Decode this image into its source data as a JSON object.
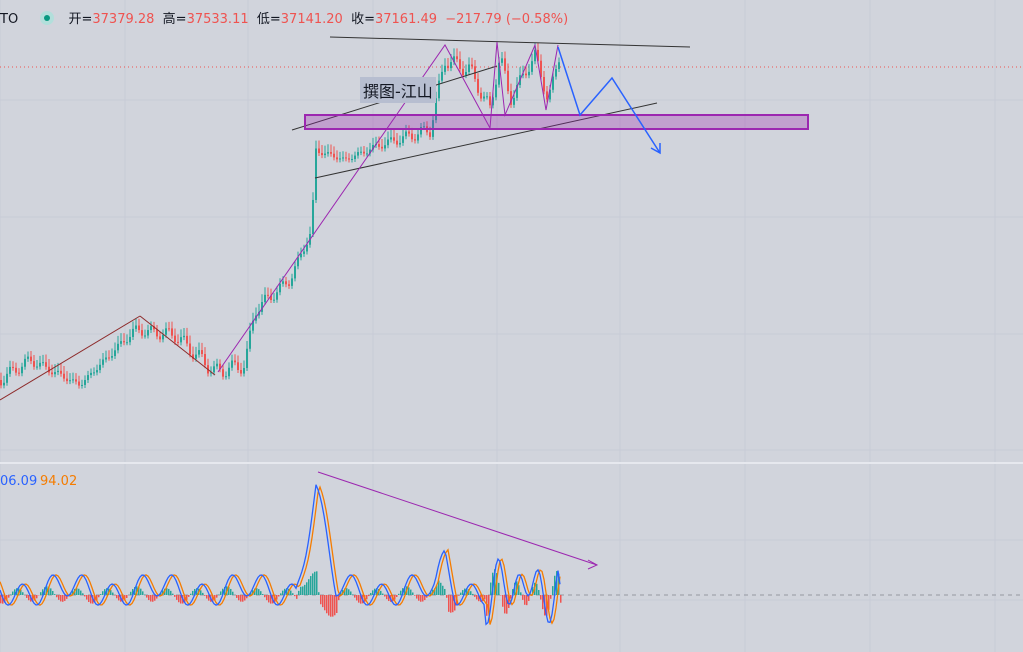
{
  "header": {
    "symbol": "TO",
    "open_label": "开=",
    "open": "37379.28",
    "high_label": "高=",
    "high": "37533.11",
    "low_label": "低=",
    "low": "37141.20",
    "close_label": "收=",
    "close": "37161.49",
    "change": "−217.79",
    "change_pct": "(−0.58%)"
  },
  "annotation": "撰图-江山",
  "indicator": {
    "value_1": "06.09",
    "value_2": "94.02"
  }
}
